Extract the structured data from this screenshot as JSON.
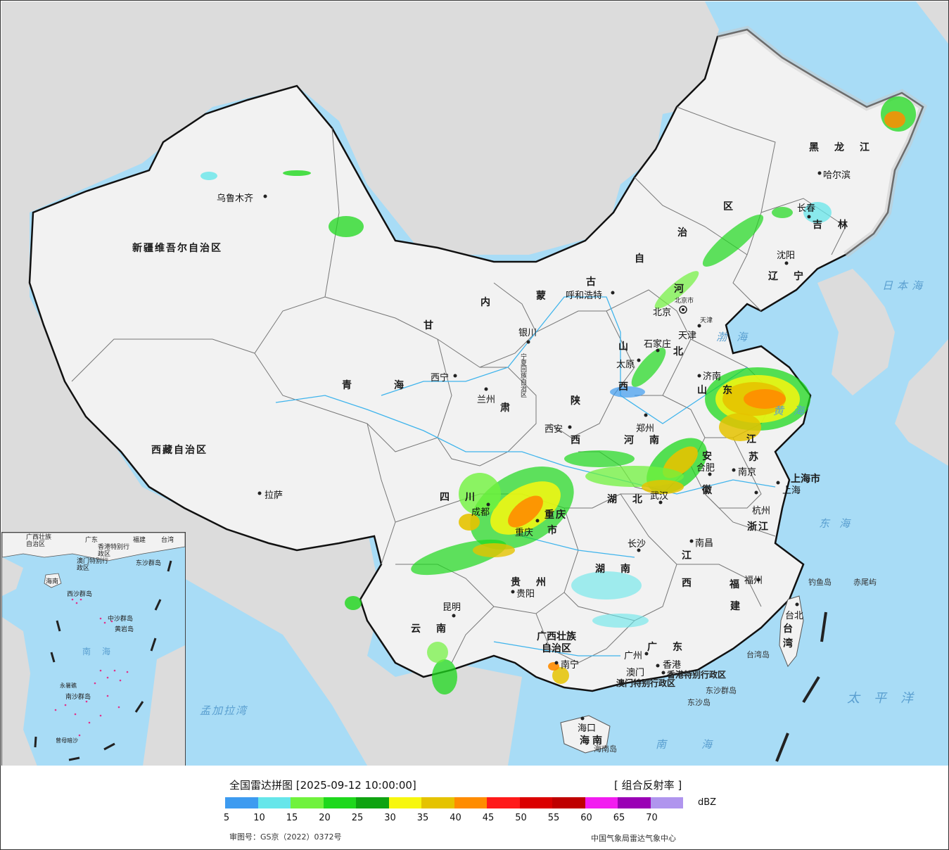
{
  "legend": {
    "title": "全国雷达拼图 [2025-09-12 10:00:00]",
    "product": "[ 组合反射率 ]",
    "unit": "dBZ",
    "approval": "审图号：GS京（2022）0372号",
    "agency": "中国气象局雷达气象中心",
    "colors": [
      "#3d9bf0",
      "#66e6ea",
      "#70f23d",
      "#1ed81c",
      "#0fa311",
      "#f7f70f",
      "#e5c300",
      "#ff8c00",
      "#ff1a1a",
      "#db0000",
      "#bf0000",
      "#f21cf0",
      "#9a00b5",
      "#b095ee"
    ],
    "ticks": [
      "5",
      "10",
      "15",
      "20",
      "25",
      "30",
      "35",
      "40",
      "45",
      "50",
      "55",
      "60",
      "65",
      "70"
    ]
  },
  "provinces": {
    "xinjiang": "新疆维吾尔自治区",
    "xizang": "西藏自治区",
    "qinghai_1": "青",
    "qinghai_2": "海",
    "gansu_1": "甘",
    "gansu_2": "肃",
    "neimenggu_1": "内",
    "neimenggu_2": "蒙",
    "neimenggu_3": "古",
    "neimenggu_4": "自",
    "neimenggu_5": "治",
    "neimenggu_6": "区",
    "heilongjiang": "黑龙江",
    "jilin": "吉林",
    "liaoning": "辽宁",
    "hebei_1": "河",
    "hebei_2": "北",
    "shanxi_1": "山",
    "shanxi_2": "西",
    "shaanxi_1": "陕",
    "shaanxi_2": "西",
    "shandong": "山东",
    "henan": "河南",
    "jiangsu_1": "江",
    "jiangsu_2": "苏",
    "anhui_1": "安",
    "anhui_2": "徽",
    "hubei": "湖北",
    "sichuan": "四川",
    "chongqing_1": "重庆",
    "chongqing_2": "市",
    "zhejiang": "浙江",
    "jiangxi_1": "江",
    "jiangxi_2": "西",
    "hunan": "湖南",
    "fujian_1": "福",
    "fujian_2": "建",
    "guizhou": "贵州",
    "yunnan": "云南",
    "guangxi_1": "广西壮族",
    "guangxi_2": "自治区",
    "guangdong": "广东",
    "hainan": "海南",
    "taiwan_1": "台",
    "taiwan_2": "湾",
    "shanghai": "上海市",
    "ningxia": "宁夏回族自治区",
    "hongkong": "香港特别行政区",
    "macau": "澳门特别行政区"
  },
  "cities": {
    "urumqi": "乌鲁木齐",
    "lhasa": "拉萨",
    "xining": "西宁",
    "lanzhou": "兰州",
    "yinchuan": "银川",
    "hohhot": "呼和浩特",
    "beijing": "北京",
    "beijing_city": "北京市",
    "tianjin": "天津",
    "tianjin_city": "天津",
    "shijiazhuang": "石家庄",
    "taiyuan": "太原",
    "jinan": "济南",
    "zhengzhou": "郑州",
    "xian": "西安",
    "chengdu": "成都",
    "chongqing": "重庆",
    "wuhan": "武汉",
    "hefei": "合肥",
    "nanjing": "南京",
    "shanghai": "上海",
    "hangzhou": "杭州",
    "nanchang": "南昌",
    "changsha": "长沙",
    "fuzhou": "福州",
    "guiyang": "贵阳",
    "kunming": "昆明",
    "nanning": "南宁",
    "guangzhou": "广州",
    "hongkong": "香港",
    "macau": "澳门",
    "haikou": "海口",
    "taipei": "台北",
    "shenyang": "沈阳",
    "changchun": "长春",
    "harbin": "哈尔滨"
  },
  "seas": {
    "japan_sea": "日本海",
    "bohai": "渤海",
    "yellow_sea": "黄海",
    "east_sea": "东海",
    "pacific": "太平洋",
    "south_sea": "南海",
    "bengal": "孟加拉湾"
  },
  "islands": {
    "diaoyu": "钓鱼岛",
    "chiwei": "赤尾屿",
    "taiwan_island": "台湾岛",
    "dongsha_qundao": "东沙群岛",
    "dongsha_dao": "东沙岛",
    "hainan_dao": "海南岛"
  },
  "inset": {
    "guangxi": "广西壮族自治区",
    "guangdong": "广东",
    "fujian": "福建",
    "taiwan": "台湾",
    "hk": "香港特别行政区",
    "macau": "澳门特别行政区",
    "dongsha": "东沙群岛",
    "hainan": "海南",
    "xisha": "西沙群岛",
    "zhongsha": "中沙群岛",
    "huangyan": "黄岩岛",
    "south_sea": "南海",
    "nansha": "南沙群岛",
    "yongshu": "永暑礁",
    "zengmu": "曾母暗沙"
  }
}
